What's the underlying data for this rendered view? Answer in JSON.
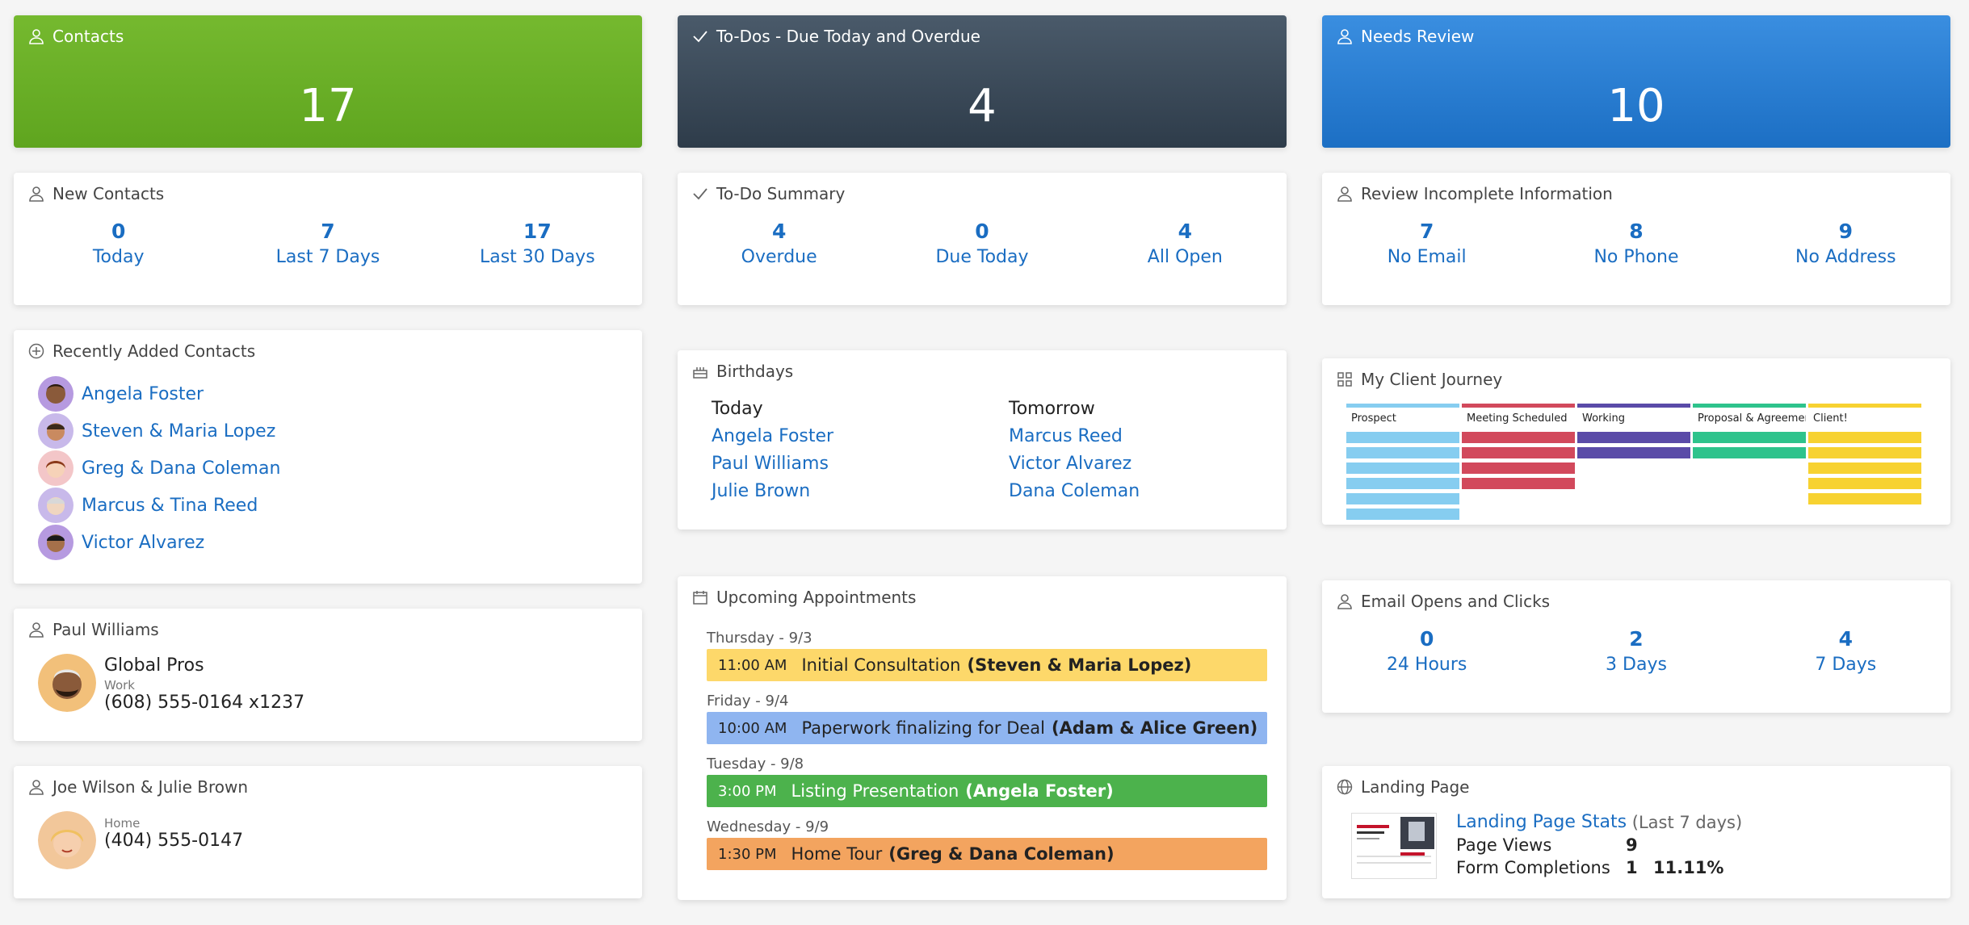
{
  "hero": {
    "contacts": {
      "title": "Contacts",
      "value": "17"
    },
    "todos": {
      "title": "To-Dos - Due Today and Overdue",
      "value": "4"
    },
    "review": {
      "title": "Needs Review",
      "value": "10"
    }
  },
  "new_contacts": {
    "title": "New Contacts",
    "stats": [
      {
        "value": "0",
        "label": "Today"
      },
      {
        "value": "7",
        "label": "Last 7 Days"
      },
      {
        "value": "17",
        "label": "Last 30 Days"
      }
    ]
  },
  "todo_summary": {
    "title": "To-Do Summary",
    "stats": [
      {
        "value": "4",
        "label": "Overdue"
      },
      {
        "value": "0",
        "label": "Due Today"
      },
      {
        "value": "4",
        "label": "All Open"
      }
    ]
  },
  "review_incomplete": {
    "title": "Review Incomplete Information",
    "stats": [
      {
        "value": "7",
        "label": "No Email"
      },
      {
        "value": "8",
        "label": "No Phone"
      },
      {
        "value": "9",
        "label": "No Address"
      }
    ]
  },
  "recent": {
    "title": "Recently Added Contacts",
    "contacts": [
      "Angela Foster",
      "Steven & Maria Lopez",
      "Greg & Dana Coleman",
      "Marcus & Tina Reed",
      "Victor Alvarez"
    ]
  },
  "birthdays": {
    "title": "Birthdays",
    "today_label": "Today",
    "today": [
      "Angela Foster",
      "Paul Williams",
      "Julie Brown"
    ],
    "tomorrow_label": "Tomorrow",
    "tomorrow": [
      "Marcus Reed",
      "Victor Alvarez",
      "Dana Coleman"
    ]
  },
  "journey": {
    "title": "My Client Journey",
    "stages": [
      {
        "name": "Prospect",
        "color": "#86cdf0",
        "count": 6
      },
      {
        "name": "Meeting Scheduled",
        "color": "#d2495c",
        "count": 4
      },
      {
        "name": "Working",
        "color": "#5a4ba8",
        "count": 2
      },
      {
        "name": "Proposal & Agreement",
        "color": "#2ec38c",
        "count": 2
      },
      {
        "name": "Client!",
        "color": "#f7d231",
        "count": 5
      }
    ]
  },
  "paul": {
    "title": "Paul Williams",
    "company": "Global Pros",
    "phone_type": "Work",
    "phone": "(608) 555-0164 x1237"
  },
  "joe": {
    "title": "Joe Wilson & Julie Brown",
    "phone_type": "Home",
    "phone": "(404) 555-0147"
  },
  "appointments": {
    "title": "Upcoming Appointments",
    "items": [
      {
        "day": "Thursday - 9/3",
        "time": "11:00 AM",
        "desc": "Initial Consultation",
        "who": "(Steven & Maria Lopez)",
        "color": "#fdd86a"
      },
      {
        "day": "Friday - 9/4",
        "time": "10:00 AM",
        "desc": "Paperwork finalizing for Deal",
        "who": "(Adam & Alice Green)",
        "color": "#8fb5f0"
      },
      {
        "day": "Tuesday - 9/8",
        "time": "3:00 PM",
        "desc": "Listing Presentation",
        "who": "(Angela Foster)",
        "color": "#4cb24c"
      },
      {
        "day": "Wednesday - 9/9",
        "time": "1:30 PM",
        "desc": "Home Tour",
        "who": "(Greg & Dana Coleman)",
        "color": "#f3a45f"
      }
    ]
  },
  "email": {
    "title": "Email Opens and Clicks",
    "stats": [
      {
        "value": "0",
        "label": "24 Hours"
      },
      {
        "value": "2",
        "label": "3 Days"
      },
      {
        "value": "4",
        "label": "7 Days"
      }
    ]
  },
  "landing": {
    "title": "Landing Page",
    "link": "Landing Page Stats",
    "period": "(Last 7 days)",
    "views_label": "Page Views",
    "views": "9",
    "completions_label": "Form Completions",
    "completions": "1",
    "rate": "11.11%"
  }
}
